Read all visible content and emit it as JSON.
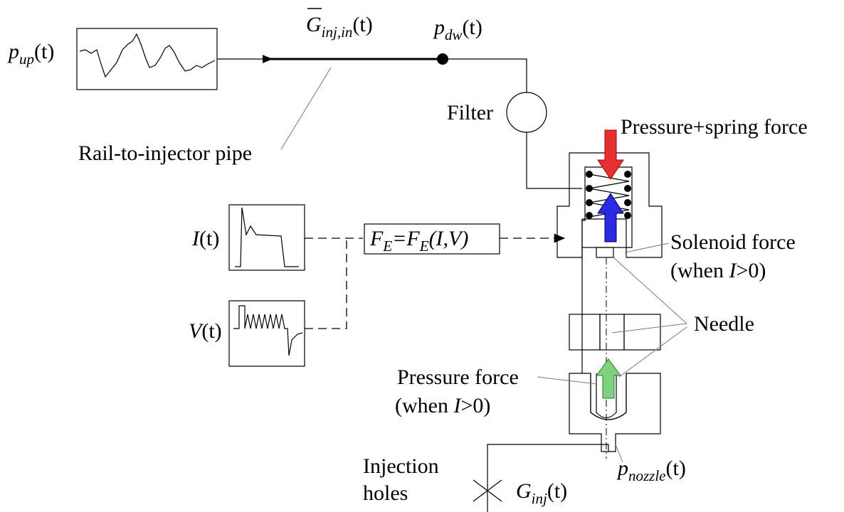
{
  "labels": {
    "p_up": [
      "p",
      "up",
      "(t)"
    ],
    "g_in": [
      "G",
      "inj,in",
      "(t)"
    ],
    "p_dw": [
      "p",
      "dw",
      "(t)"
    ],
    "filter": "Filter",
    "pressure_spring": "Pressure+spring force",
    "pipe": "Rail-to-injector pipe",
    "current": [
      "I",
      "(t)"
    ],
    "voltage": [
      "V",
      "(t)"
    ],
    "force_e": [
      "F",
      "E",
      "=",
      "F",
      "E",
      "(I,V)"
    ],
    "solenoid": [
      "Solenoid force",
      "(when ",
      "I",
      ">0)"
    ],
    "needle": "Needle",
    "pressure_force": [
      "Pressure force",
      "(when ",
      "I",
      ">0)"
    ],
    "holes": [
      "Injection",
      "holes"
    ],
    "g_inj": [
      "G",
      "inj",
      "(t)"
    ],
    "p_nozzle": [
      "p",
      "nozzle",
      "(t)"
    ]
  }
}
